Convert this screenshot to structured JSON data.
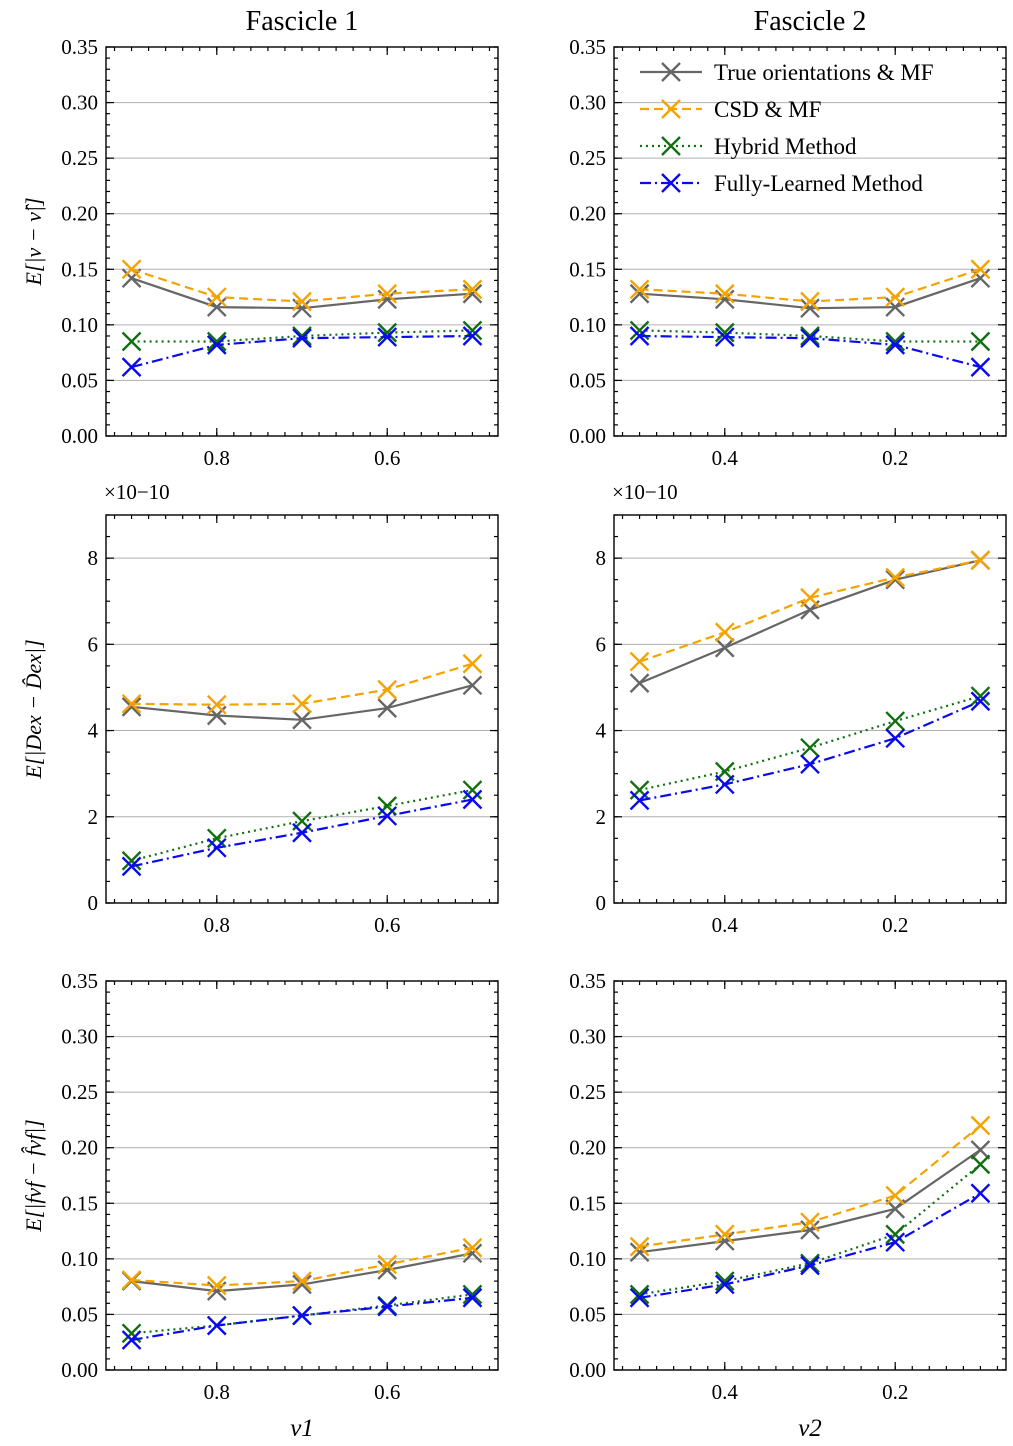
{
  "column_titles": [
    "Fascicle 1",
    "Fascicle 2"
  ],
  "x_axis_labels": {
    "left": "ν1",
    "right": "ν2"
  },
  "legend": {
    "entries": [
      {
        "label": "True orientations & MF",
        "color": "#666666",
        "dash": "solid"
      },
      {
        "label": "CSD & MF",
        "color": "#f5a300",
        "dash": "dashed"
      },
      {
        "label": "Hybrid Method",
        "color": "#107010",
        "dash": "dotted"
      },
      {
        "label": "Fully-Learned Method",
        "color": "#0a0aef",
        "dash": "dashdot"
      }
    ]
  },
  "chart_data": [
    {
      "id": "r0c0",
      "type": "line",
      "row": 0,
      "col": 0,
      "x": [
        0.9,
        0.8,
        0.7,
        0.6,
        0.5
      ],
      "xlim": [
        0.93,
        0.47
      ],
      "xticks": [
        0.8,
        0.6
      ],
      "xticklabels": [
        "0.8",
        "0.6"
      ],
      "ylim": [
        0,
        0.35
      ],
      "yticks": [
        0,
        0.05,
        0.1,
        0.15,
        0.2,
        0.25,
        0.3,
        0.35
      ],
      "yticklabels": [
        "0.00",
        "0.05",
        "0.10",
        "0.15",
        "0.20",
        "0.25",
        "0.30",
        "0.35"
      ],
      "ylabel": "E[|ν − ν̂|]",
      "exponent": "",
      "series": [
        {
          "name": "True orientations & MF",
          "values": [
            0.142,
            0.116,
            0.115,
            0.123,
            0.128
          ]
        },
        {
          "name": "CSD & MF",
          "values": [
            0.15,
            0.125,
            0.121,
            0.128,
            0.132
          ]
        },
        {
          "name": "Hybrid Method",
          "values": [
            0.085,
            0.085,
            0.09,
            0.093,
            0.095
          ]
        },
        {
          "name": "Fully-Learned Method",
          "values": [
            0.062,
            0.082,
            0.088,
            0.089,
            0.09
          ]
        }
      ]
    },
    {
      "id": "r0c1",
      "type": "line",
      "row": 0,
      "col": 1,
      "x": [
        0.5,
        0.4,
        0.3,
        0.2,
        0.1
      ],
      "xlim": [
        0.53,
        0.07
      ],
      "xticks": [
        0.4,
        0.2
      ],
      "xticklabels": [
        "0.4",
        "0.2"
      ],
      "ylim": [
        0,
        0.35
      ],
      "yticks": [
        0,
        0.05,
        0.1,
        0.15,
        0.2,
        0.25,
        0.3,
        0.35
      ],
      "yticklabels": [
        "0.00",
        "0.05",
        "0.10",
        "0.15",
        "0.20",
        "0.25",
        "0.30",
        "0.35"
      ],
      "ylabel": "",
      "exponent": "",
      "series": [
        {
          "name": "True orientations & MF",
          "values": [
            0.128,
            0.123,
            0.115,
            0.116,
            0.142
          ]
        },
        {
          "name": "CSD & MF",
          "values": [
            0.132,
            0.128,
            0.121,
            0.125,
            0.15
          ]
        },
        {
          "name": "Hybrid Method",
          "values": [
            0.095,
            0.093,
            0.09,
            0.085,
            0.085
          ]
        },
        {
          "name": "Fully-Learned Method",
          "values": [
            0.09,
            0.089,
            0.088,
            0.082,
            0.062
          ]
        }
      ]
    },
    {
      "id": "r1c0",
      "type": "line",
      "row": 1,
      "col": 0,
      "x": [
        0.9,
        0.8,
        0.7,
        0.6,
        0.5
      ],
      "xlim": [
        0.93,
        0.47
      ],
      "xticks": [
        0.8,
        0.6
      ],
      "xticklabels": [
        "0.8",
        "0.6"
      ],
      "ylim": [
        0,
        9
      ],
      "yticks": [
        0,
        2,
        4,
        6,
        8
      ],
      "yticklabels": [
        "0",
        "2",
        "4",
        "6",
        "8"
      ],
      "ylabel": "E[|Dex − D̂ex|]",
      "exponent": "×10−10",
      "series": [
        {
          "name": "True orientations & MF",
          "values": [
            4.55,
            4.35,
            4.25,
            4.52,
            5.05
          ]
        },
        {
          "name": "CSD & MF",
          "values": [
            4.62,
            4.6,
            4.62,
            4.95,
            5.55
          ]
        },
        {
          "name": "Hybrid Method",
          "values": [
            0.98,
            1.5,
            1.9,
            2.25,
            2.62
          ]
        },
        {
          "name": "Fully-Learned Method",
          "values": [
            0.85,
            1.28,
            1.63,
            2.02,
            2.4
          ]
        }
      ]
    },
    {
      "id": "r1c1",
      "type": "line",
      "row": 1,
      "col": 1,
      "x": [
        0.5,
        0.4,
        0.3,
        0.2,
        0.1
      ],
      "xlim": [
        0.53,
        0.07
      ],
      "xticks": [
        0.4,
        0.2
      ],
      "xticklabels": [
        "0.4",
        "0.2"
      ],
      "ylim": [
        0,
        9
      ],
      "yticks": [
        0,
        2,
        4,
        6,
        8
      ],
      "yticklabels": [
        "0",
        "2",
        "4",
        "6",
        "8"
      ],
      "ylabel": "",
      "exponent": "×10−10",
      "series": [
        {
          "name": "True orientations & MF",
          "values": [
            5.1,
            5.92,
            6.8,
            7.5,
            7.95
          ]
        },
        {
          "name": "CSD & MF",
          "values": [
            5.6,
            6.28,
            7.08,
            7.55,
            7.95
          ]
        },
        {
          "name": "Hybrid Method",
          "values": [
            2.62,
            3.05,
            3.6,
            4.22,
            4.8
          ]
        },
        {
          "name": "Fully-Learned Method",
          "values": [
            2.38,
            2.75,
            3.22,
            3.82,
            4.68
          ]
        }
      ]
    },
    {
      "id": "r2c0",
      "type": "line",
      "row": 2,
      "col": 0,
      "x": [
        0.9,
        0.8,
        0.7,
        0.6,
        0.5
      ],
      "xlim": [
        0.93,
        0.47
      ],
      "xticks": [
        0.8,
        0.6
      ],
      "xticklabels": [
        "0.8",
        "0.6"
      ],
      "ylim": [
        0,
        0.35
      ],
      "yticks": [
        0,
        0.05,
        0.1,
        0.15,
        0.2,
        0.25,
        0.3,
        0.35
      ],
      "yticklabels": [
        "0.00",
        "0.05",
        "0.10",
        "0.15",
        "0.20",
        "0.25",
        "0.30",
        "0.35"
      ],
      "ylabel": "E[|fνf − f̂νf|]",
      "exponent": "",
      "series": [
        {
          "name": "True orientations & MF",
          "values": [
            0.08,
            0.071,
            0.077,
            0.09,
            0.105
          ]
        },
        {
          "name": "CSD & MF",
          "values": [
            0.081,
            0.076,
            0.08,
            0.095,
            0.11
          ]
        },
        {
          "name": "Hybrid Method",
          "values": [
            0.033,
            0.04,
            0.049,
            0.058,
            0.068
          ]
        },
        {
          "name": "Fully-Learned Method",
          "values": [
            0.027,
            0.04,
            0.049,
            0.057,
            0.065
          ]
        }
      ]
    },
    {
      "id": "r2c1",
      "type": "line",
      "row": 2,
      "col": 1,
      "x": [
        0.5,
        0.4,
        0.3,
        0.2,
        0.1
      ],
      "xlim": [
        0.53,
        0.07
      ],
      "xticks": [
        0.4,
        0.2
      ],
      "xticklabels": [
        "0.4",
        "0.2"
      ],
      "ylim": [
        0,
        0.35
      ],
      "yticks": [
        0,
        0.05,
        0.1,
        0.15,
        0.2,
        0.25,
        0.3,
        0.35
      ],
      "yticklabels": [
        "0.00",
        "0.05",
        "0.10",
        "0.15",
        "0.20",
        "0.25",
        "0.30",
        "0.35"
      ],
      "ylabel": "",
      "exponent": "",
      "series": [
        {
          "name": "True orientations & MF",
          "values": [
            0.106,
            0.116,
            0.126,
            0.145,
            0.198
          ]
        },
        {
          "name": "CSD & MF",
          "values": [
            0.111,
            0.122,
            0.133,
            0.157,
            0.22
          ]
        },
        {
          "name": "Hybrid Method",
          "values": [
            0.068,
            0.08,
            0.096,
            0.122,
            0.185
          ]
        },
        {
          "name": "Fully-Learned Method",
          "values": [
            0.065,
            0.077,
            0.094,
            0.115,
            0.159
          ]
        }
      ]
    }
  ]
}
